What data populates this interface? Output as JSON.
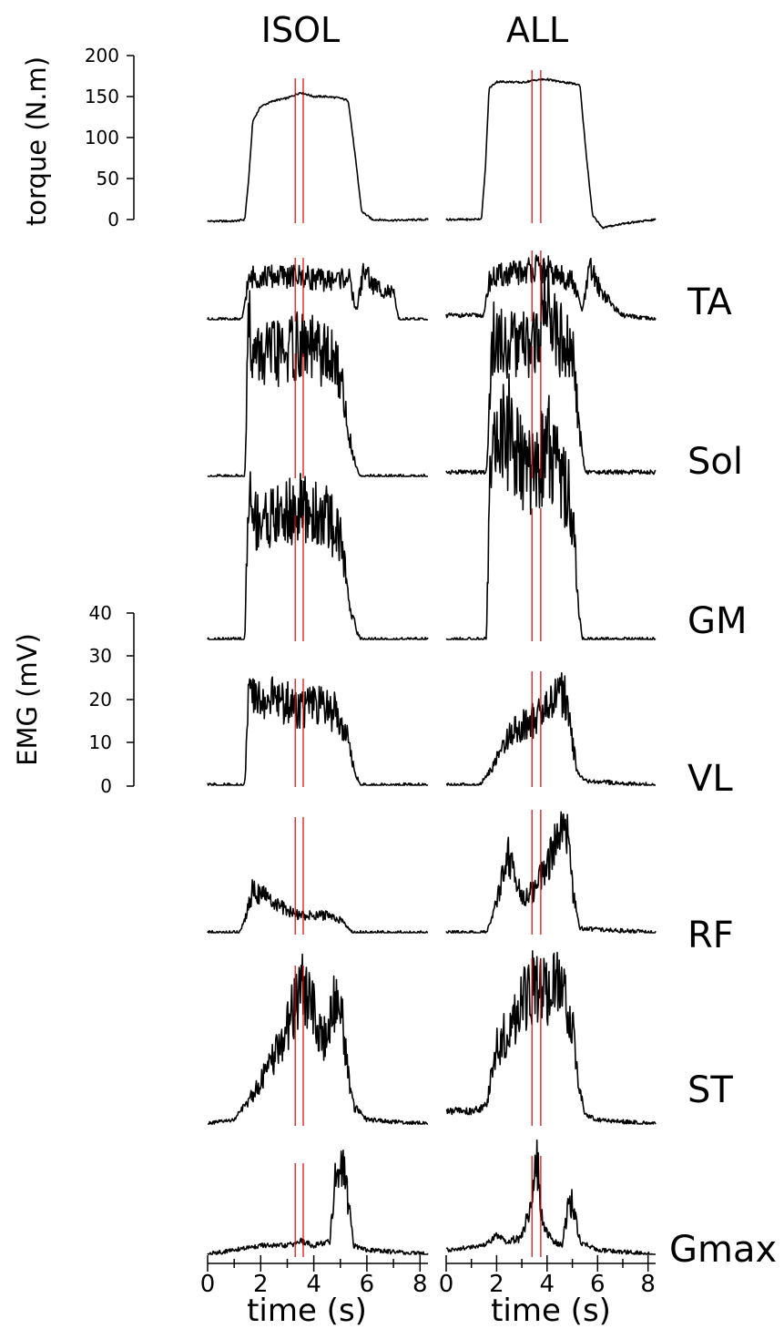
{
  "chart_data": {
    "type": "line",
    "columns": [
      "ISOL",
      "ALL"
    ],
    "xlabel": "time (s)",
    "x_ticks": [
      "0",
      "2",
      "4",
      "6",
      "8"
    ],
    "xlim": [
      0,
      8.3
    ],
    "marker_times": {
      "ISOL": [
        3.3,
        3.6
      ],
      "ALL": [
        3.4,
        3.75
      ]
    },
    "torque_axis": {
      "label": "torque (N.m)",
      "ylim": [
        0,
        200
      ],
      "ticks": [
        "200",
        "150",
        "100",
        "50",
        "0"
      ]
    },
    "emg_axis": {
      "label": "EMG  (mV)",
      "ylim": [
        0,
        40
      ],
      "ticks": [
        "40",
        "30",
        "20",
        "10",
        "0"
      ]
    },
    "rows": [
      {
        "label": "",
        "units": "torque",
        "series": [
          {
            "column": "ISOL",
            "x": [
              0,
              1.0,
              1.4,
              1.55,
              1.7,
              2.0,
              2.5,
              3.0,
              3.5,
              4.0,
              4.5,
              5.0,
              5.3,
              5.55,
              5.8,
              6.2,
              7.0,
              8.3
            ],
            "y": [
              -2,
              -2,
              0,
              50,
              120,
              138,
              145,
              148,
              155,
              150,
              150,
              148,
              145,
              80,
              10,
              0,
              -1,
              0
            ]
          },
          {
            "column": "ALL",
            "x": [
              0,
              1.0,
              1.4,
              1.55,
              1.7,
              2.0,
              2.5,
              3.0,
              3.5,
              4.0,
              4.5,
              5.0,
              5.3,
              5.55,
              5.8,
              6.2,
              7.0,
              8.3
            ],
            "y": [
              0,
              0,
              1,
              60,
              160,
              168,
              168,
              167,
              170,
              171,
              168,
              166,
              164,
              80,
              5,
              -10,
              -5,
              0
            ]
          }
        ]
      },
      {
        "label": "TA",
        "units": "emg",
        "series": [
          {
            "column": "ISOL",
            "x": [
              0,
              1.3,
              1.5,
              1.7,
              2.5,
              3.5,
              4.5,
              5.3,
              5.6,
              5.9,
              6.2,
              6.6,
              7.0,
              7.2,
              8.3
            ],
            "y": [
              0,
              0,
              8,
              10,
              10,
              10,
              9,
              10,
              2,
              12,
              8,
              7,
              6,
              0,
              0
            ]
          },
          {
            "column": "ALL",
            "x": [
              0,
              1.5,
              1.7,
              2.0,
              3.0,
              3.5,
              4.5,
              5.0,
              5.4,
              5.7,
              6.1,
              6.5,
              6.8,
              7.0,
              8.3
            ],
            "y": [
              1,
              1,
              9,
              10,
              11,
              12,
              10,
              9,
              2,
              12,
              7,
              4,
              2,
              1,
              0
            ]
          }
        ]
      },
      {
        "label": "Sol",
        "units": "emg",
        "series": [
          {
            "column": "ISOL",
            "x": [
              0,
              1.4,
              1.55,
              1.7,
              2.5,
              3.5,
              4.5,
              5.0,
              5.3,
              5.6,
              5.8,
              6.5,
              8.3
            ],
            "y": [
              0,
              0,
              38,
              28,
              28,
              30,
              28,
              24,
              10,
              2,
              0,
              0,
              0
            ]
          },
          {
            "column": "ALL",
            "x": [
              0,
              1.6,
              1.8,
              1.9,
              2.5,
              3.5,
              4.0,
              4.5,
              5.0,
              5.3,
              5.5,
              6.0,
              8.3
            ],
            "y": [
              1,
              1,
              30,
              32,
              30,
              30,
              42,
              32,
              28,
              10,
              1,
              1,
              1
            ]
          }
        ]
      },
      {
        "label": "GM",
        "units": "emg",
        "series": [
          {
            "column": "ISOL",
            "x": [
              0,
              1.4,
              1.55,
              1.7,
              2.5,
              3.5,
              4.5,
              5.0,
              5.3,
              5.6,
              5.8,
              6.5,
              8.3
            ],
            "y": [
              0,
              0,
              36,
              28,
              28,
              30,
              28,
              24,
              10,
              2,
              0,
              0,
              0
            ]
          },
          {
            "column": "ALL",
            "x": [
              0,
              1.6,
              1.75,
              1.9,
              2.5,
              3.0,
              3.5,
              4.0,
              4.5,
              5.0,
              5.2,
              5.4,
              8.3
            ],
            "y": [
              0,
              0,
              45,
              45,
              48,
              40,
              38,
              45,
              40,
              30,
              10,
              0,
              0
            ]
          }
        ]
      },
      {
        "label": "VL",
        "units": "emg",
        "series": [
          {
            "column": "ISOL",
            "x": [
              0,
              1.4,
              1.55,
              1.7,
              2.5,
              3.5,
              4.5,
              5.0,
              5.3,
              5.6,
              5.8,
              6.5,
              8.3
            ],
            "y": [
              0,
              0,
              22,
              20,
              20,
              18,
              18,
              16,
              10,
              2,
              0,
              0,
              0
            ]
          },
          {
            "column": "ALL",
            "x": [
              0,
              1.3,
              1.6,
              2.0,
              2.5,
              3.0,
              3.5,
              4.0,
              4.5,
              4.8,
              5.0,
              5.2,
              5.5,
              8.3
            ],
            "y": [
              0,
              0,
              2,
              6,
              12,
              14,
              15,
              18,
              22,
              20,
              10,
              3,
              1,
              0
            ]
          }
        ]
      },
      {
        "label": "RF",
        "units": "emg",
        "series": [
          {
            "column": "ISOL",
            "x": [
              0,
              1.2,
              1.5,
              1.7,
              2.0,
              2.5,
              3.0,
              3.5,
              4.0,
              4.5,
              5.0,
              5.3,
              5.5,
              8.3
            ],
            "y": [
              0,
              0,
              5,
              10,
              9,
              7,
              5,
              4,
              4,
              4,
              3,
              1,
              0,
              0
            ]
          },
          {
            "column": "ALL",
            "x": [
              0,
              1.6,
              1.9,
              2.2,
              2.5,
              3.0,
              3.5,
              4.0,
              4.5,
              4.8,
              5.0,
              5.3,
              8.3
            ],
            "y": [
              0,
              0,
              5,
              12,
              18,
              8,
              10,
              16,
              22,
              24,
              10,
              1,
              0
            ]
          }
        ]
      },
      {
        "label": "ST",
        "units": "emg",
        "series": [
          {
            "column": "ISOL",
            "x": [
              0,
              1.0,
              1.5,
              2.0,
              2.5,
              3.0,
              3.5,
              4.0,
              4.5,
              4.8,
              5.0,
              5.3,
              5.5,
              6.0,
              8.3
            ],
            "y": [
              0,
              1,
              5,
              10,
              15,
              22,
              32,
              26,
              18,
              30,
              28,
              12,
              4,
              1,
              0
            ]
          },
          {
            "column": "ALL",
            "x": [
              0,
              1.0,
              1.6,
              1.8,
              2.0,
              2.5,
              3.0,
              3.5,
              4.0,
              4.5,
              5.0,
              5.3,
              5.5,
              6.0,
              8.3
            ],
            "y": [
              3,
              3,
              4,
              12,
              18,
              22,
              28,
              32,
              30,
              32,
              22,
              8,
              2,
              1,
              0
            ]
          }
        ]
      },
      {
        "label": "Gmax",
        "units": "emg",
        "series": [
          {
            "column": "ISOL",
            "x": [
              0,
              1.0,
              2.0,
              3.0,
              3.5,
              4.0,
              4.6,
              4.8,
              5.1,
              5.3,
              5.5,
              6.0,
              8.3
            ],
            "y": [
              0,
              1,
              2,
              2,
              3,
              2,
              3,
              18,
              20,
              12,
              2,
              1,
              0
            ]
          },
          {
            "column": "ALL",
            "x": [
              0,
              1.5,
              2.0,
              2.5,
              3.0,
              3.4,
              3.6,
              3.8,
              4.2,
              4.6,
              4.8,
              5.0,
              5.3,
              6.0,
              8.3
            ],
            "y": [
              1,
              2,
              4,
              3,
              4,
              12,
              22,
              8,
              3,
              2,
              10,
              12,
              3,
              1,
              0
            ]
          }
        ]
      }
    ]
  }
}
